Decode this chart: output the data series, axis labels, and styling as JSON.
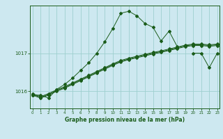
{
  "title": "Graphe pression niveau de la mer (hPa)",
  "bg_color": "#cde8f0",
  "line_color": "#1a5c1a",
  "grid_color": "#9ecfcf",
  "x_ticks": [
    0,
    1,
    2,
    3,
    4,
    5,
    6,
    7,
    8,
    9,
    10,
    11,
    12,
    13,
    14,
    15,
    16,
    17,
    18,
    19,
    20,
    21,
    22,
    23
  ],
  "y_ticks": [
    1016,
    1017
  ],
  "ylim": [
    1015.55,
    1018.25
  ],
  "xlim": [
    -0.3,
    23.3
  ],
  "series1": [
    1015.9,
    1015.9,
    1015.82,
    1016.05,
    1016.18,
    1016.35,
    1016.55,
    1016.75,
    1017.0,
    1017.3,
    1017.65,
    1018.05,
    1018.1,
    1017.98,
    1017.78,
    1017.68,
    1017.32,
    1017.58,
    1017.18,
    null,
    1017.0,
    1017.0,
    1016.62,
    1017.0
  ],
  "series2": [
    1015.9,
    1015.82,
    1015.9,
    1016.0,
    1016.08,
    1016.18,
    1016.28,
    1016.38,
    1016.48,
    1016.58,
    1016.68,
    1016.77,
    1016.83,
    1016.88,
    1016.93,
    1016.98,
    1017.02,
    1017.07,
    1017.12,
    1017.17,
    1017.2,
    1017.2,
    1017.18,
    1017.2
  ],
  "series3": [
    1015.92,
    1015.84,
    1015.92,
    1016.02,
    1016.1,
    1016.2,
    1016.3,
    1016.4,
    1016.5,
    1016.6,
    1016.7,
    1016.79,
    1016.85,
    1016.9,
    1016.95,
    1017.0,
    1017.04,
    1017.09,
    1017.14,
    1017.19,
    1017.22,
    1017.22,
    1017.2,
    1017.22
  ],
  "series4": [
    1015.94,
    1015.86,
    1015.94,
    1016.04,
    1016.12,
    1016.22,
    1016.32,
    1016.42,
    1016.52,
    1016.62,
    1016.72,
    1016.81,
    1016.87,
    1016.92,
    1016.97,
    1017.02,
    1017.06,
    1017.11,
    1017.16,
    1017.21,
    1017.24,
    1017.24,
    1017.22,
    1017.24
  ]
}
